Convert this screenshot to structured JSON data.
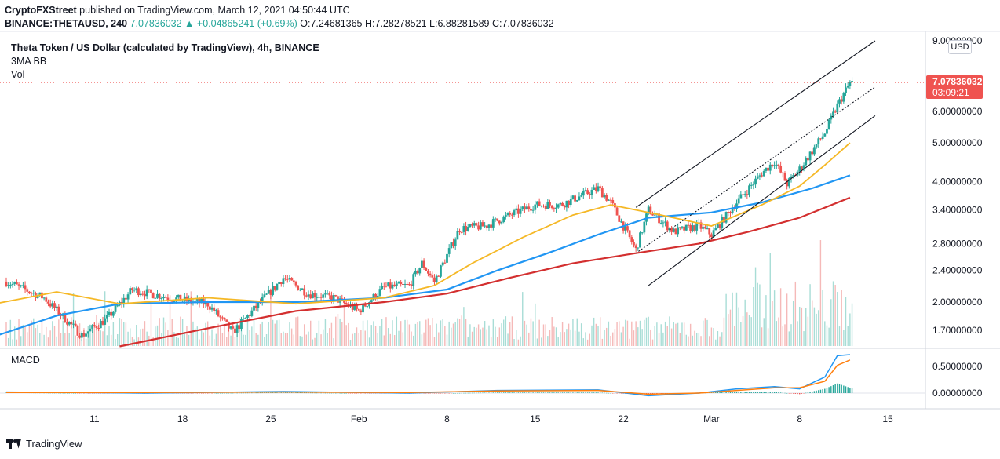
{
  "header": {
    "publisher": "CryptoFXStreet",
    "published_text": "published on TradingView.com, March 12, 2021 04:50:44 UTC",
    "symbol": "BINANCE:THETAUSD, 240",
    "change": "7.07836032 ▲ +0.04865241 (+0.69%)",
    "open": "O:7.24681365",
    "high": "H:7.28278521",
    "low": "L:6.88281589",
    "close": "C:7.07836032"
  },
  "legend": {
    "title": "Theta Token / US Dollar (calculated by TradingView), 4h, BINANCE",
    "indicator": "3MA BB",
    "volume": "Vol"
  },
  "macd_label": "MACD",
  "currency": "USD",
  "price_tag": {
    "price": "7.07836032",
    "countdown": "03:09:21"
  },
  "brand": "TradingView",
  "colors": {
    "up": "#26a69a",
    "down": "#ef5350",
    "ma_short": "#f5b826",
    "ma_mid": "#2196f3",
    "ma_long": "#d32f2f",
    "macd": "#2196f3",
    "signal": "#ff7f0e"
  },
  "chart_data": {
    "type": "candlestick",
    "scale": "log",
    "x_tick_labels": [
      "11",
      "18",
      "25",
      "Feb",
      "8",
      "15",
      "22",
      "Mar",
      "8",
      "15"
    ],
    "y_tick_labels": [
      "9.00000000",
      "6.00000000",
      "5.00000000",
      "4.00000000",
      "3.40000000",
      "2.80000000",
      "2.40000000",
      "2.00000000",
      "1.70000000"
    ],
    "y_ticks": [
      9.0,
      6.0,
      5.0,
      4.0,
      3.4,
      2.8,
      2.4,
      2.0,
      1.7
    ],
    "macd_tick_labels": [
      "0.50000000",
      "0.00000000"
    ],
    "macd_ticks": [
      0.5,
      0.0
    ],
    "price_path": [
      [
        "2021-01-04",
        2.25
      ],
      [
        "2021-01-07",
        2.05
      ],
      [
        "2021-01-10",
        1.65
      ],
      [
        "2021-01-12",
        1.82
      ],
      [
        "2021-01-14",
        2.15
      ],
      [
        "2021-01-17",
        2.05
      ],
      [
        "2021-01-20",
        1.98
      ],
      [
        "2021-01-22",
        1.68
      ],
      [
        "2021-01-24",
        1.97
      ],
      [
        "2021-01-26",
        2.3
      ],
      [
        "2021-01-28",
        2.1
      ],
      [
        "2021-01-30",
        2.05
      ],
      [
        "2021-02-01",
        1.9
      ],
      [
        "2021-02-03",
        2.18
      ],
      [
        "2021-02-05",
        2.2
      ],
      [
        "2021-02-06",
        2.5
      ],
      [
        "2021-02-07",
        2.25
      ],
      [
        "2021-02-09",
        3.05
      ],
      [
        "2021-02-11",
        3.1
      ],
      [
        "2021-02-13",
        3.3
      ],
      [
        "2021-02-15",
        3.5
      ],
      [
        "2021-02-17",
        3.5
      ],
      [
        "2021-02-20",
        3.85
      ],
      [
        "2021-02-21",
        3.55
      ],
      [
        "2021-02-23",
        2.7
      ],
      [
        "2021-02-24",
        3.4
      ],
      [
        "2021-02-26",
        3.0
      ],
      [
        "2021-02-28",
        3.1
      ],
      [
        "2021-03-01",
        2.95
      ],
      [
        "2021-03-03",
        3.55
      ],
      [
        "2021-03-05",
        4.2
      ],
      [
        "2021-03-06",
        4.5
      ],
      [
        "2021-03-07",
        3.95
      ],
      [
        "2021-03-08",
        4.3
      ],
      [
        "2021-03-10",
        5.3
      ],
      [
        "2021-03-11",
        6.2
      ],
      [
        "2021-03-12",
        7.08
      ]
    ],
    "ma_short": [
      [
        "2021-01-02",
        1.95
      ],
      [
        "2021-01-08",
        2.12
      ],
      [
        "2021-01-13",
        1.98
      ],
      [
        "2021-01-20",
        2.05
      ],
      [
        "2021-01-27",
        1.98
      ],
      [
        "2021-02-03",
        2.05
      ],
      [
        "2021-02-07",
        2.2
      ],
      [
        "2021-02-10",
        2.5
      ],
      [
        "2021-02-14",
        2.9
      ],
      [
        "2021-02-18",
        3.3
      ],
      [
        "2021-02-21",
        3.5
      ],
      [
        "2021-02-25",
        3.3
      ],
      [
        "2021-03-01",
        3.1
      ],
      [
        "2021-03-05",
        3.5
      ],
      [
        "2021-03-08",
        3.9
      ],
      [
        "2021-03-10",
        4.4
      ],
      [
        "2021-03-12",
        5.0
      ]
    ],
    "ma_mid": [
      [
        "2021-01-02",
        1.6
      ],
      [
        "2021-01-08",
        1.85
      ],
      [
        "2021-01-13",
        1.98
      ],
      [
        "2021-01-20",
        2.0
      ],
      [
        "2021-01-27",
        2.0
      ],
      [
        "2021-02-03",
        2.05
      ],
      [
        "2021-02-08",
        2.15
      ],
      [
        "2021-02-12",
        2.4
      ],
      [
        "2021-02-16",
        2.65
      ],
      [
        "2021-02-20",
        2.95
      ],
      [
        "2021-02-24",
        3.25
      ],
      [
        "2021-03-01",
        3.35
      ],
      [
        "2021-03-05",
        3.55
      ],
      [
        "2021-03-09",
        3.85
      ],
      [
        "2021-03-12",
        4.15
      ]
    ],
    "ma_long": [
      [
        "2021-01-13",
        1.55
      ],
      [
        "2021-01-20",
        1.72
      ],
      [
        "2021-01-27",
        1.9
      ],
      [
        "2021-02-03",
        2.0
      ],
      [
        "2021-02-08",
        2.1
      ],
      [
        "2021-02-13",
        2.3
      ],
      [
        "2021-02-18",
        2.5
      ],
      [
        "2021-02-23",
        2.65
      ],
      [
        "2021-02-28",
        2.8
      ],
      [
        "2021-03-04",
        3.0
      ],
      [
        "2021-03-08",
        3.25
      ],
      [
        "2021-03-12",
        3.65
      ]
    ],
    "channel": {
      "upper": [
        [
          "2021-02-23",
          3.45
        ],
        [
          "2021-03-14",
          9.0
        ]
      ],
      "middle": [
        [
          "2021-02-23",
          2.65
        ],
        [
          "2021-03-14",
          6.9
        ]
      ],
      "lower": [
        [
          "2021-02-24",
          2.2
        ],
        [
          "2021-03-14",
          5.85
        ]
      ]
    },
    "macd": [
      [
        "2021-01-04",
        0.02
      ],
      [
        "2021-01-15",
        0.0
      ],
      [
        "2021-01-26",
        0.03
      ],
      [
        "2021-02-05",
        0.0
      ],
      [
        "2021-02-12",
        0.05
      ],
      [
        "2021-02-20",
        0.06
      ],
      [
        "2021-02-24",
        -0.05
      ],
      [
        "2021-02-28",
        0.0
      ],
      [
        "2021-03-03",
        0.08
      ],
      [
        "2021-03-06",
        0.12
      ],
      [
        "2021-03-08",
        0.08
      ],
      [
        "2021-03-10",
        0.3
      ],
      [
        "2021-03-11",
        0.7
      ],
      [
        "2021-03-12",
        0.72
      ]
    ],
    "signal": [
      [
        "2021-01-04",
        0.01
      ],
      [
        "2021-01-15",
        0.01
      ],
      [
        "2021-01-26",
        0.02
      ],
      [
        "2021-02-05",
        0.01
      ],
      [
        "2021-02-12",
        0.04
      ],
      [
        "2021-02-20",
        0.05
      ],
      [
        "2021-02-24",
        -0.02
      ],
      [
        "2021-02-28",
        0.0
      ],
      [
        "2021-03-03",
        0.05
      ],
      [
        "2021-03-06",
        0.1
      ],
      [
        "2021-03-08",
        0.1
      ],
      [
        "2021-03-10",
        0.22
      ],
      [
        "2021-03-11",
        0.52
      ],
      [
        "2021-03-12",
        0.62
      ]
    ]
  }
}
